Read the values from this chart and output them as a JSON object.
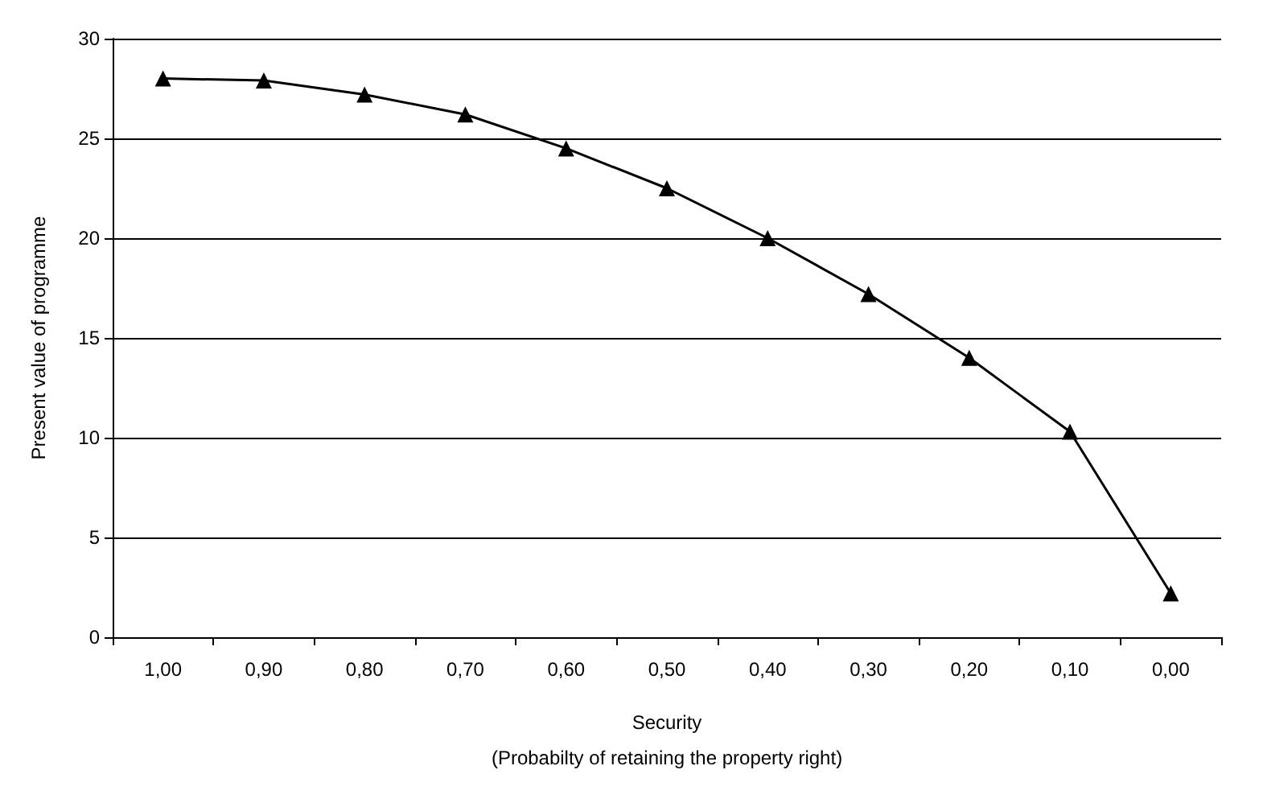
{
  "chart_data": {
    "type": "line",
    "xlabel": "Security\n(Probabilty of retaining the property right)",
    "ylabel": "Present value of programme",
    "categories": [
      "1,00",
      "0,90",
      "0,80",
      "0,70",
      "0,60",
      "0,50",
      "0,40",
      "0,30",
      "0,20",
      "0,10",
      "0,00"
    ],
    "series": [
      {
        "color": "#000000",
        "values": [
          28.0,
          27.9,
          27.2,
          26.2,
          24.5,
          22.5,
          20.0,
          17.2,
          14.0,
          10.3,
          2.2
        ]
      }
    ],
    "ylim": [
      0,
      30
    ],
    "yticks": [
      0,
      5,
      10,
      15,
      20,
      25,
      30
    ],
    "grid": "y",
    "marker": "triangle",
    "line_style": "solid"
  }
}
